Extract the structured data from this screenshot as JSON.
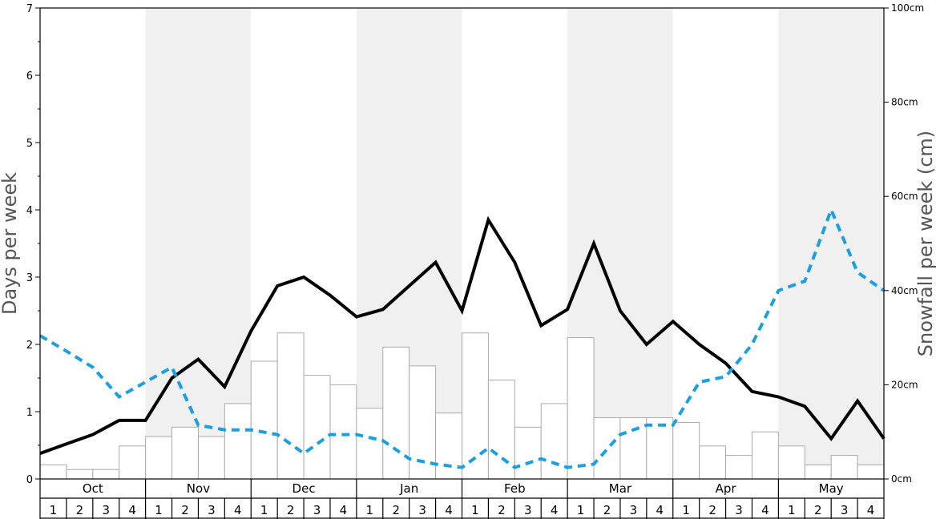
{
  "chart_data": {
    "type": "bar+line",
    "months": [
      "Oct",
      "Nov",
      "Dec",
      "Jan",
      "Feb",
      "Mar",
      "Apr",
      "May"
    ],
    "weeks": [
      "1",
      "2",
      "3",
      "4"
    ],
    "ylabel_left": "Days per week",
    "ylabel_right": "Snowfall per week (cm)",
    "ylim_left": [
      0,
      7
    ],
    "ylim_right": [
      0,
      100
    ],
    "left_ticks": [
      "0",
      "1",
      "2",
      "3",
      "4",
      "5",
      "6",
      "7"
    ],
    "right_ticks": [
      "0cm",
      "20cm",
      "40cm",
      "60cm",
      "80cm",
      "100cm"
    ],
    "shaded_months": [
      "Nov",
      "Jan",
      "Mar",
      "May"
    ],
    "shade_color": "#f0f0f0",
    "bar_series": {
      "axis": "right",
      "unit": "cm",
      "values": [
        3,
        2,
        2,
        7,
        9,
        11,
        9,
        16,
        25,
        31,
        22,
        20,
        15,
        28,
        24,
        14,
        31,
        21,
        11,
        16,
        30,
        13,
        13,
        13,
        12,
        7,
        5,
        10,
        7,
        3,
        5,
        3
      ],
      "fill": "#ffffff",
      "stroke": "#aaaaaa"
    },
    "line_series": [
      {
        "axis": "left",
        "style": "solid",
        "color": "#000000",
        "values": [
          0.38,
          0.52,
          0.66,
          0.87,
          0.87,
          1.5,
          1.78,
          1.37,
          2.2,
          2.87,
          3.0,
          2.73,
          2.41,
          2.52,
          2.87,
          3.22,
          2.5,
          3.85,
          3.22,
          2.28,
          2.52,
          3.5,
          2.5,
          2.0,
          2.34,
          2.0,
          1.72,
          1.3,
          1.22,
          1.08,
          0.6,
          1.16,
          0.6
        ]
      },
      {
        "axis": "left",
        "style": "dashed",
        "color": "#1b9fe0",
        "values": [
          2.13,
          1.9,
          1.66,
          1.22,
          1.44,
          1.66,
          0.8,
          0.73,
          0.73,
          0.66,
          0.38,
          0.66,
          0.66,
          0.57,
          0.3,
          0.22,
          0.17,
          0.46,
          0.17,
          0.3,
          0.17,
          0.22,
          0.66,
          0.8,
          0.8,
          1.44,
          1.52,
          2.0,
          2.8,
          2.94,
          4.0,
          3.07,
          2.8
        ]
      }
    ]
  }
}
